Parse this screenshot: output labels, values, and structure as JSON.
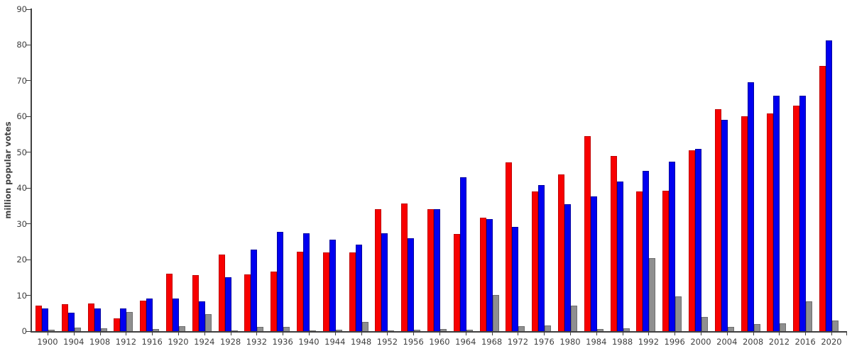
{
  "chart_data": {
    "type": "bar",
    "title": "",
    "ylabel": "million popular votes",
    "xlabel": "",
    "ylim": [
      0,
      90
    ],
    "yticks": [
      0,
      10,
      20,
      30,
      40,
      50,
      60,
      70,
      80,
      90
    ],
    "grid": false,
    "legend": "none",
    "axis_color": "#404040",
    "categories": [
      "1900",
      "1904",
      "1908",
      "1912",
      "1916",
      "1920",
      "1924",
      "1928",
      "1932",
      "1936",
      "1940",
      "1944",
      "1948",
      "1952",
      "1956",
      "1960",
      "1964",
      "1968",
      "1972",
      "1976",
      "1980",
      "1984",
      "1988",
      "1992",
      "1996",
      "2000",
      "2004",
      "2008",
      "2012",
      "2016",
      "2020"
    ],
    "series": [
      {
        "name": "red",
        "color": "#f80000",
        "edge": "#c00000",
        "values": [
          7.2,
          7.6,
          7.7,
          3.5,
          8.5,
          16.1,
          15.7,
          21.4,
          15.8,
          16.7,
          22.3,
          22.0,
          22.0,
          34.1,
          35.6,
          34.1,
          27.2,
          31.8,
          47.2,
          39.1,
          43.9,
          54.5,
          48.9,
          39.1,
          39.2,
          50.5,
          62.0,
          60.0,
          60.9,
          63.0,
          74.2
        ]
      },
      {
        "name": "blue",
        "color": "#0000f0",
        "edge": "#0000a0",
        "values": [
          6.4,
          5.1,
          6.4,
          6.3,
          9.1,
          9.1,
          8.4,
          15.0,
          22.8,
          27.8,
          27.3,
          25.6,
          24.2,
          27.3,
          26.0,
          34.2,
          43.1,
          31.3,
          29.2,
          40.8,
          35.5,
          37.6,
          41.8,
          44.9,
          47.4,
          51.0,
          59.0,
          69.5,
          65.9,
          65.8,
          81.3
        ]
      },
      {
        "name": "gray",
        "color": "#8f8f8f",
        "edge": "#6e6e6e",
        "values": [
          0.4,
          1.0,
          0.9,
          5.3,
          0.6,
          1.4,
          4.8,
          0.3,
          1.2,
          1.2,
          0.3,
          0.4,
          2.5,
          0.3,
          0.4,
          0.6,
          0.5,
          10.1,
          1.4,
          1.6,
          7.1,
          0.6,
          0.9,
          20.4,
          9.7,
          3.9,
          1.2,
          1.9,
          2.2,
          8.3,
          2.9
        ]
      }
    ]
  }
}
